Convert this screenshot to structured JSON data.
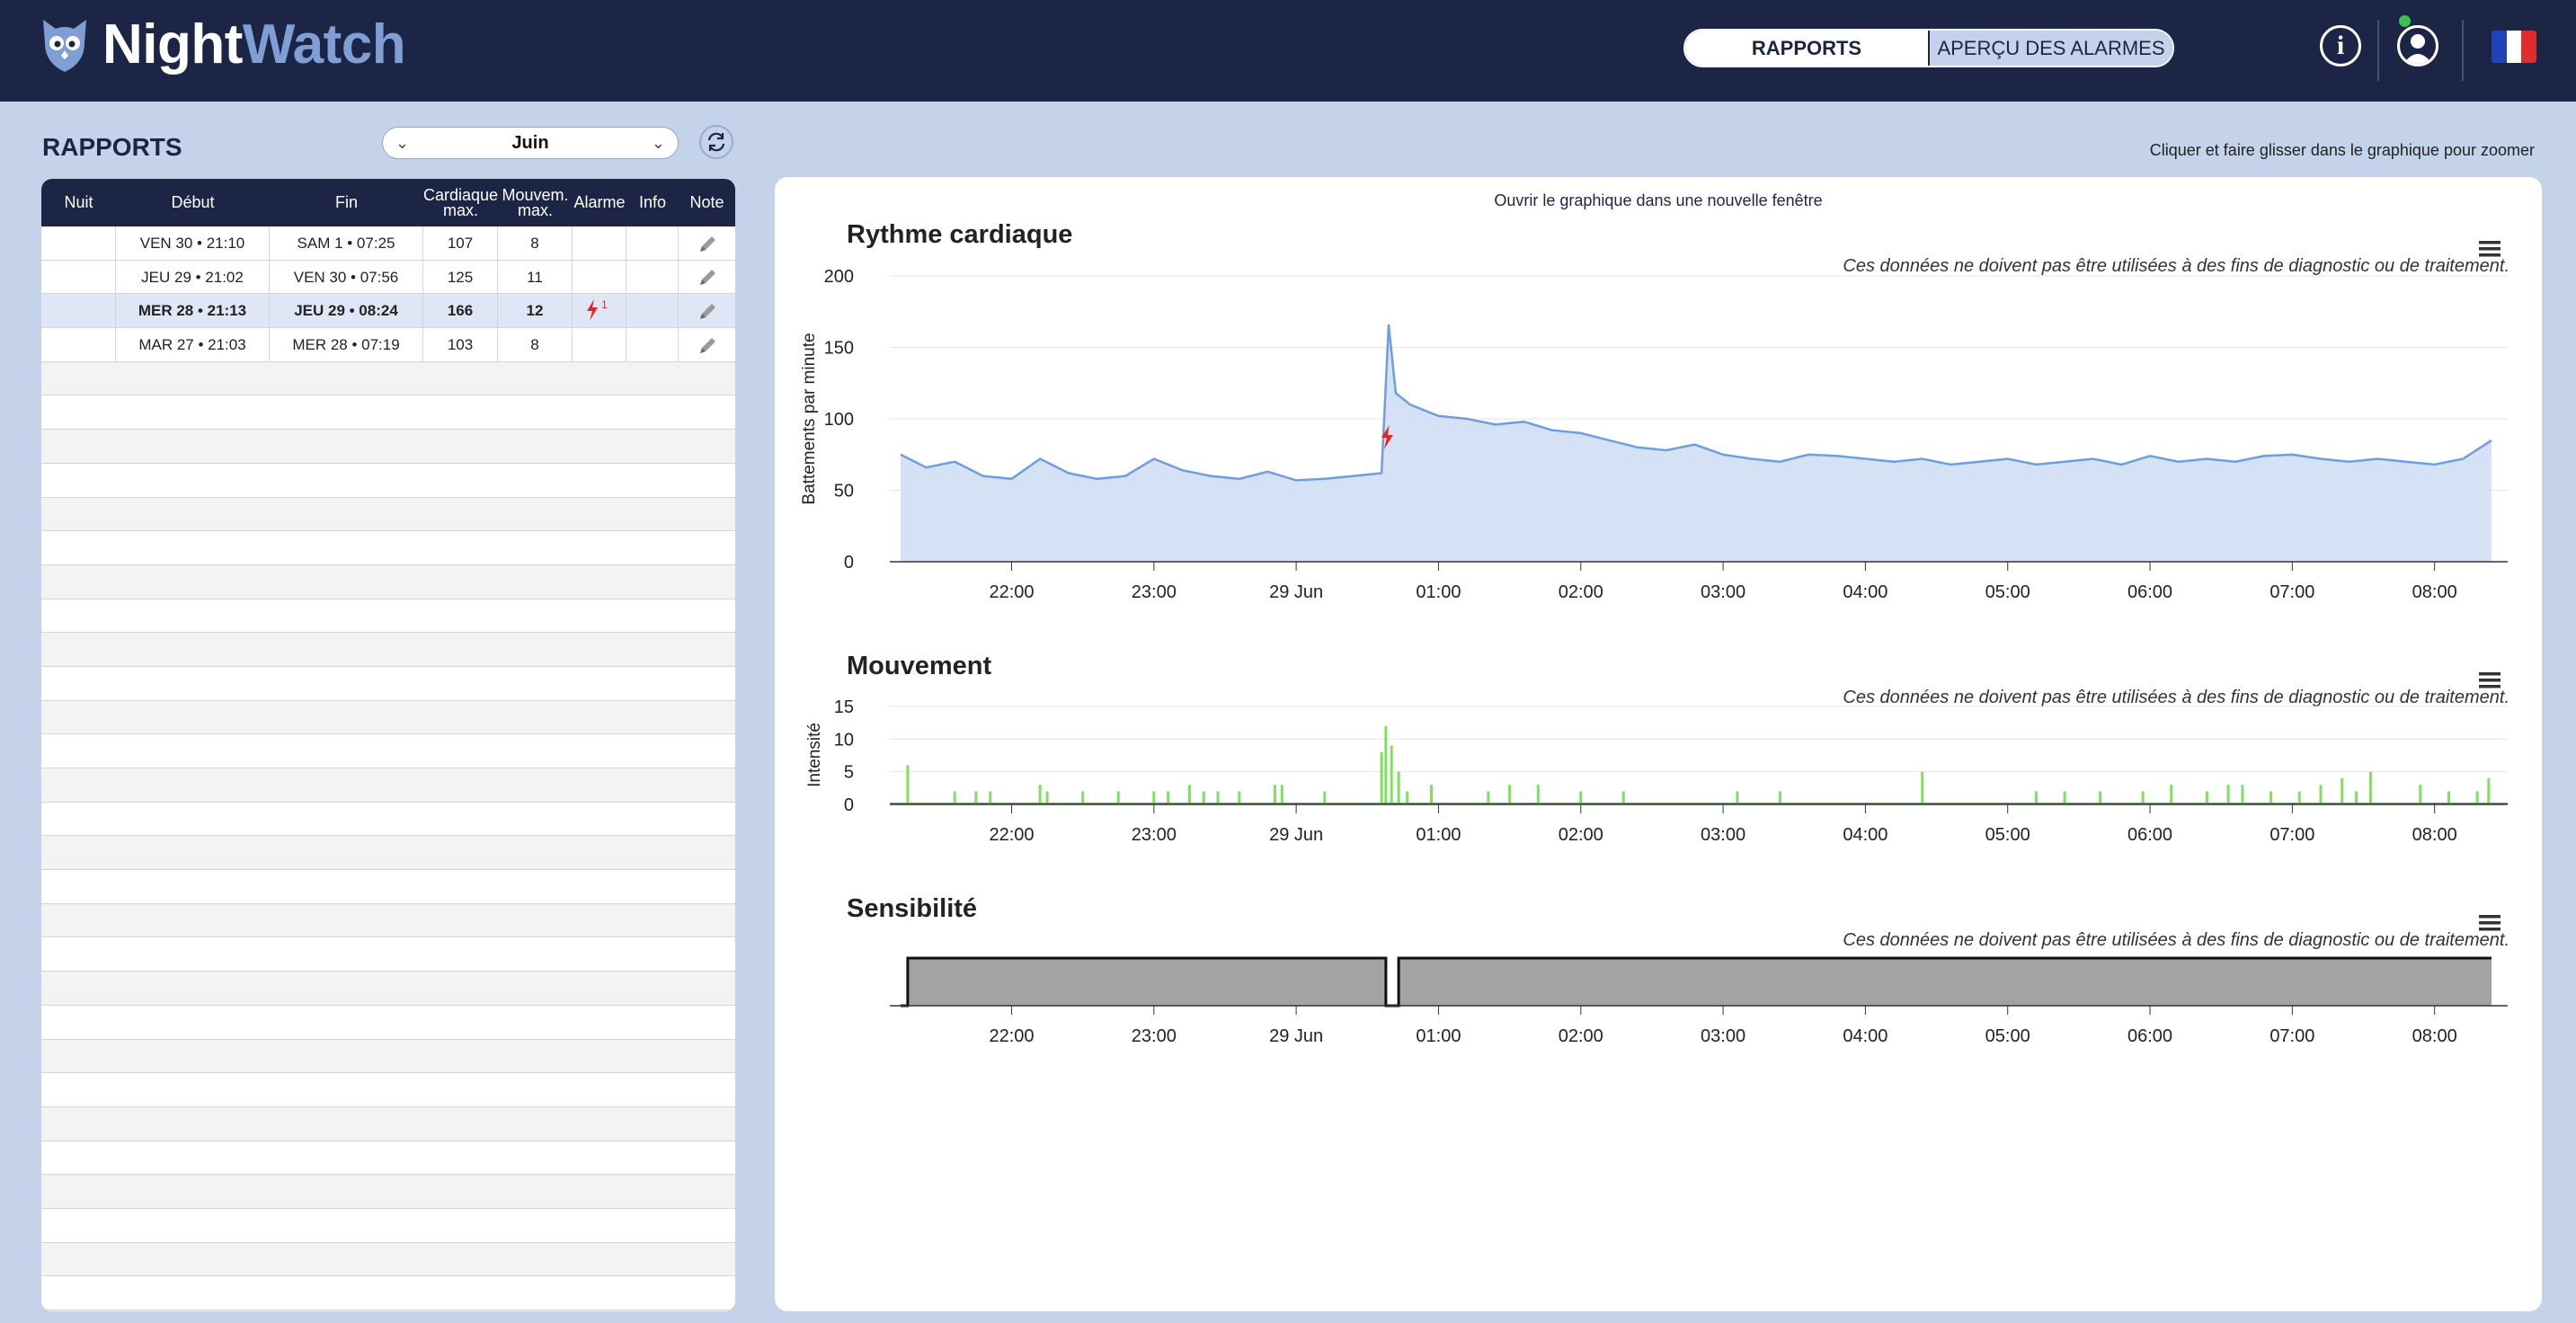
{
  "app": {
    "name_part1": "Night",
    "name_part2": "Watch"
  },
  "header": {
    "tabs": [
      {
        "label": "RAPPORTS",
        "active": true
      },
      {
        "label": "APERÇU DES ALARMES",
        "active": false
      }
    ],
    "info_icon": "info-icon",
    "user_icon": "user-icon",
    "language_flag": "fr"
  },
  "sidebar": {
    "title": "RAPPORTS",
    "month_select": "Juin",
    "columns": [
      "Nuit",
      "Début",
      "Fin",
      "Cardiaque max.",
      "Mouvem. max.",
      "Alarme",
      "Info",
      "Note"
    ],
    "column_lines": {
      "cardiaque": [
        "Cardiaque",
        "max."
      ],
      "mouvem": [
        "Mouvem.",
        "max."
      ]
    },
    "rows": [
      {
        "nuit": "",
        "debut": "VEN 30 • 21:10",
        "fin": "SAM 1 • 07:25",
        "cardiaque": "107",
        "mouvem": "8",
        "alarme": "",
        "alarme_count": "",
        "info": "",
        "selected": false
      },
      {
        "nuit": "",
        "debut": "JEU 29 • 21:02",
        "fin": "VEN 30 • 07:56",
        "cardiaque": "125",
        "mouvem": "11",
        "alarme": "",
        "alarme_count": "",
        "info": "",
        "selected": false
      },
      {
        "nuit": "",
        "debut": "MER 28 • 21:13",
        "fin": "JEU 29 • 08:24",
        "cardiaque": "166",
        "mouvem": "12",
        "alarme": "bolt",
        "alarme_count": "1",
        "info": "",
        "selected": true
      },
      {
        "nuit": "",
        "debut": "MAR 27 • 21:03",
        "fin": "MER 28 • 07:19",
        "cardiaque": "103",
        "mouvem": "8",
        "alarme": "",
        "alarme_count": "",
        "info": "",
        "selected": false
      }
    ]
  },
  "main": {
    "zoom_hint": "Cliquer et faire glisser dans le graphique pour zoomer",
    "open_link": "Ouvrir le graphique dans une nouvelle fenêtre",
    "disclaimer": "Ces données ne doivent pas être utilisées à des fins de diagnostic ou de traitement."
  },
  "colors": {
    "navy": "#1d2547",
    "heart_line": "#6f9ee0",
    "heart_fill": "#d5e2f5",
    "movement": "#7de05e",
    "sensitivity": "#a3a3a3",
    "alarm": "#e52424"
  },
  "chart_data": [
    {
      "type": "area",
      "title": "Rythme cardiaque",
      "ylabel": "Battements par minute",
      "ylim": [
        0,
        200
      ],
      "yticks": [
        "0",
        "50",
        "100",
        "150",
        "200"
      ],
      "xticks": [
        "22:00",
        "23:00",
        "29 Jun",
        "01:00",
        "02:00",
        "03:00",
        "04:00",
        "05:00",
        "06:00",
        "07:00",
        "08:00"
      ],
      "x_range_hours": [
        21.22,
        32.4
      ],
      "alarm_marker_hour": 24.63,
      "series": [
        {
          "x": [
            21.22,
            21.4,
            21.6,
            21.8,
            22.0,
            22.2,
            22.4,
            22.6,
            22.8,
            23.0,
            23.2,
            23.4,
            23.6,
            23.8,
            24.0,
            24.2,
            24.4,
            24.6,
            24.65,
            24.7,
            24.8,
            25.0,
            25.2,
            25.4,
            25.6,
            25.8,
            26.0,
            26.2,
            26.4,
            26.6,
            26.8,
            27.0,
            27.2,
            27.4,
            27.6,
            27.8,
            28.0,
            28.2,
            28.4,
            28.6,
            28.8,
            29.0,
            29.2,
            29.4,
            29.6,
            29.8,
            30.0,
            30.2,
            30.4,
            30.6,
            30.8,
            31.0,
            31.2,
            31.4,
            31.6,
            31.8,
            32.0,
            32.2,
            32.4
          ],
          "values": [
            75,
            66,
            70,
            60,
            58,
            72,
            62,
            58,
            60,
            72,
            64,
            60,
            58,
            63,
            57,
            58,
            60,
            62,
            166,
            118,
            110,
            102,
            100,
            96,
            98,
            92,
            90,
            85,
            80,
            78,
            82,
            75,
            72,
            70,
            75,
            74,
            72,
            70,
            72,
            68,
            70,
            72,
            68,
            70,
            72,
            68,
            74,
            70,
            72,
            70,
            74,
            75,
            72,
            70,
            72,
            70,
            68,
            72,
            85
          ]
        }
      ]
    },
    {
      "type": "bar",
      "title": "Mouvement",
      "ylabel": "Intensité",
      "ylim": [
        0,
        15
      ],
      "yticks": [
        "0",
        "5",
        "10",
        "15"
      ],
      "xticks": [
        "22:00",
        "23:00",
        "29 Jun",
        "01:00",
        "02:00",
        "03:00",
        "04:00",
        "05:00",
        "06:00",
        "07:00",
        "08:00"
      ],
      "series": [
        {
          "x": [
            21.27,
            21.6,
            21.75,
            21.85,
            22.2,
            22.25,
            22.5,
            22.75,
            23.0,
            23.1,
            23.25,
            23.35,
            23.45,
            23.6,
            23.85,
            23.9,
            24.2,
            24.6,
            24.63,
            24.67,
            24.72,
            24.78,
            24.95,
            25.35,
            25.5,
            25.7,
            26.0,
            26.3,
            27.1,
            27.4,
            28.4,
            29.2,
            29.4,
            29.65,
            29.95,
            30.15,
            30.4,
            30.55,
            30.65,
            30.85,
            31.05,
            31.2,
            31.35,
            31.45,
            31.55,
            31.9,
            32.1,
            32.3,
            32.38
          ],
          "values": [
            6,
            2,
            2,
            2,
            3,
            2,
            2,
            2,
            2,
            2,
            3,
            2,
            2,
            2,
            3,
            3,
            2,
            8,
            12,
            9,
            5,
            2,
            3,
            2,
            3,
            3,
            2,
            2,
            2,
            2,
            5,
            2,
            2,
            2,
            2,
            3,
            2,
            3,
            3,
            2,
            2,
            3,
            4,
            2,
            5,
            3,
            2,
            2,
            4
          ]
        }
      ]
    },
    {
      "type": "area",
      "title": "Sensibilité",
      "xticks": [
        "22:00",
        "23:00",
        "29 Jun",
        "01:00",
        "02:00",
        "03:00",
        "04:00",
        "05:00",
        "06:00",
        "07:00",
        "08:00"
      ],
      "series": [
        {
          "x": [
            21.22,
            21.27,
            21.27,
            24.63,
            24.63,
            24.72,
            24.72,
            32.4
          ],
          "values": [
            0,
            0,
            1,
            1,
            0,
            0,
            1,
            1
          ]
        }
      ]
    }
  ]
}
